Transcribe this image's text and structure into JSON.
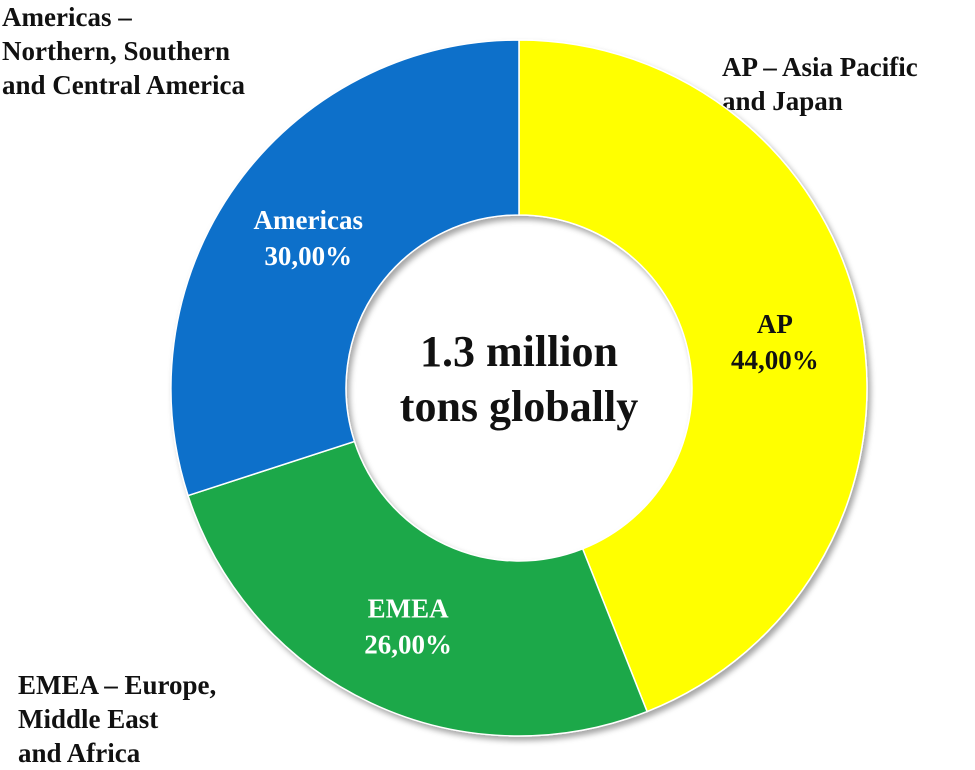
{
  "chart_data": {
    "type": "pie",
    "variant": "donut",
    "center_text": [
      "1.3 million",
      "tons globally"
    ],
    "slices": [
      {
        "label": "AP",
        "value": 44.0,
        "value_label": "44,00%",
        "color": "#ffff00",
        "text_color": "#111111"
      },
      {
        "label": "EMEA",
        "value": 26.0,
        "value_label": "26,00%",
        "color": "#1fa84a",
        "text_color": "#ffffff"
      },
      {
        "label": "Americas",
        "value": 30.0,
        "value_label": "30,00%",
        "color": "#0a6fca",
        "text_color": "#ffffff"
      }
    ],
    "annotations": [
      "Americas –\nNorthern, Southern\nand Central America",
      "AP – Asia Pacific\nand Japan",
      "EMEA – Europe,\nMiddle East\nand Africa"
    ]
  }
}
